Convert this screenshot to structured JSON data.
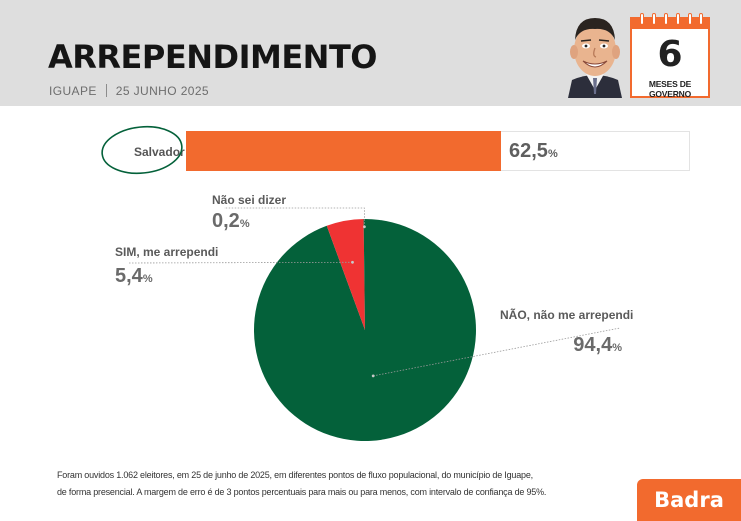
{
  "header": {
    "title": "ARREPENDIMENTO",
    "location": "IGUAPE",
    "date": "25 JUNHO 2025"
  },
  "badge": {
    "number": "6",
    "caption": "MESES DE GOVERNO"
  },
  "colors": {
    "orange": "#f26a2e",
    "green": "#04613a",
    "red": "#ef3333",
    "header_bg": "#dedede",
    "candidate_ring": "#04613a"
  },
  "chart_data": [
    {
      "type": "bar",
      "categories": [
        "Salvador"
      ],
      "values": [
        62.5
      ],
      "value_labels": [
        "62,5"
      ],
      "unit": "%",
      "xlim": [
        0,
        100
      ],
      "highlighted": "Salvador"
    },
    {
      "type": "pie",
      "title": "ARREPENDIMENTO",
      "slices": [
        {
          "label": "NÃO, não me arrependi",
          "value": 94.4,
          "value_label": "94,4",
          "color": "#04613a"
        },
        {
          "label": "SIM, me arrependi",
          "value": 5.4,
          "value_label": "5,4",
          "color": "#ef3333"
        },
        {
          "label": "Não sei dizer",
          "value": 0.2,
          "value_label": "0,2",
          "color": "#04613a"
        }
      ],
      "unit": "%"
    }
  ],
  "footnote": {
    "line1": "Foram ouvidos 1.062 eleitores, em 25 de junho de 2025, em diferentes pontos de fluxo populacional, do município de Iguape,",
    "line2": "de forma presencial. A margem de erro é de 3 pontos percentuais para mais ou para menos, com intervalo de confiança de 95%."
  },
  "brand": {
    "name": "Badra"
  }
}
